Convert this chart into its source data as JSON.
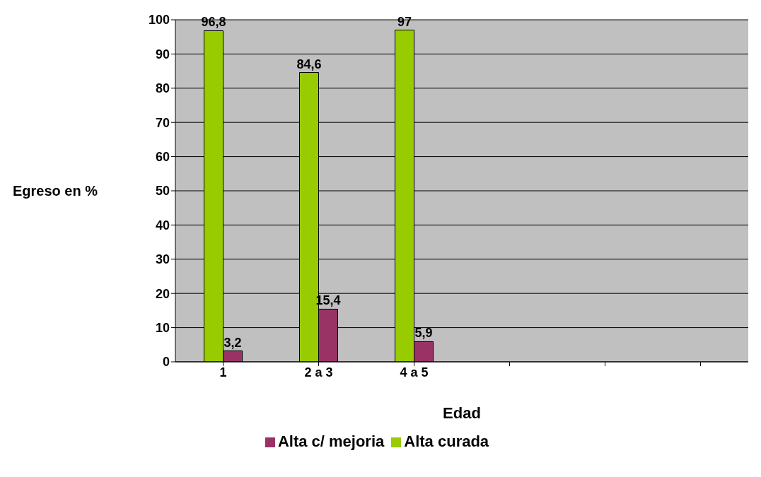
{
  "chart_data": {
    "type": "bar",
    "xlabel": "Edad",
    "ylabel": "Egreso en %",
    "categories": [
      "1",
      "2 a 3",
      "4 a 5",
      null,
      null,
      null
    ],
    "series": [
      {
        "name": "Alta curada",
        "color": "#99cc00",
        "values": [
          96.8,
          84.6,
          97,
          null,
          null,
          null
        ],
        "value_labels": [
          "96,8",
          "84,6",
          "97",
          null,
          null,
          null
        ]
      },
      {
        "name": "Alta c/ mejoria",
        "color": "#993366",
        "values": [
          3.2,
          15.4,
          5.9,
          null,
          null,
          null
        ],
        "value_labels": [
          "3,2",
          "15,4",
          "5,9",
          null,
          null,
          null
        ]
      }
    ],
    "ylim": [
      0,
      100
    ],
    "yticks": [
      0,
      10,
      20,
      30,
      40,
      50,
      60,
      70,
      80,
      90,
      100
    ],
    "grid": "y",
    "legend": "bottom"
  }
}
